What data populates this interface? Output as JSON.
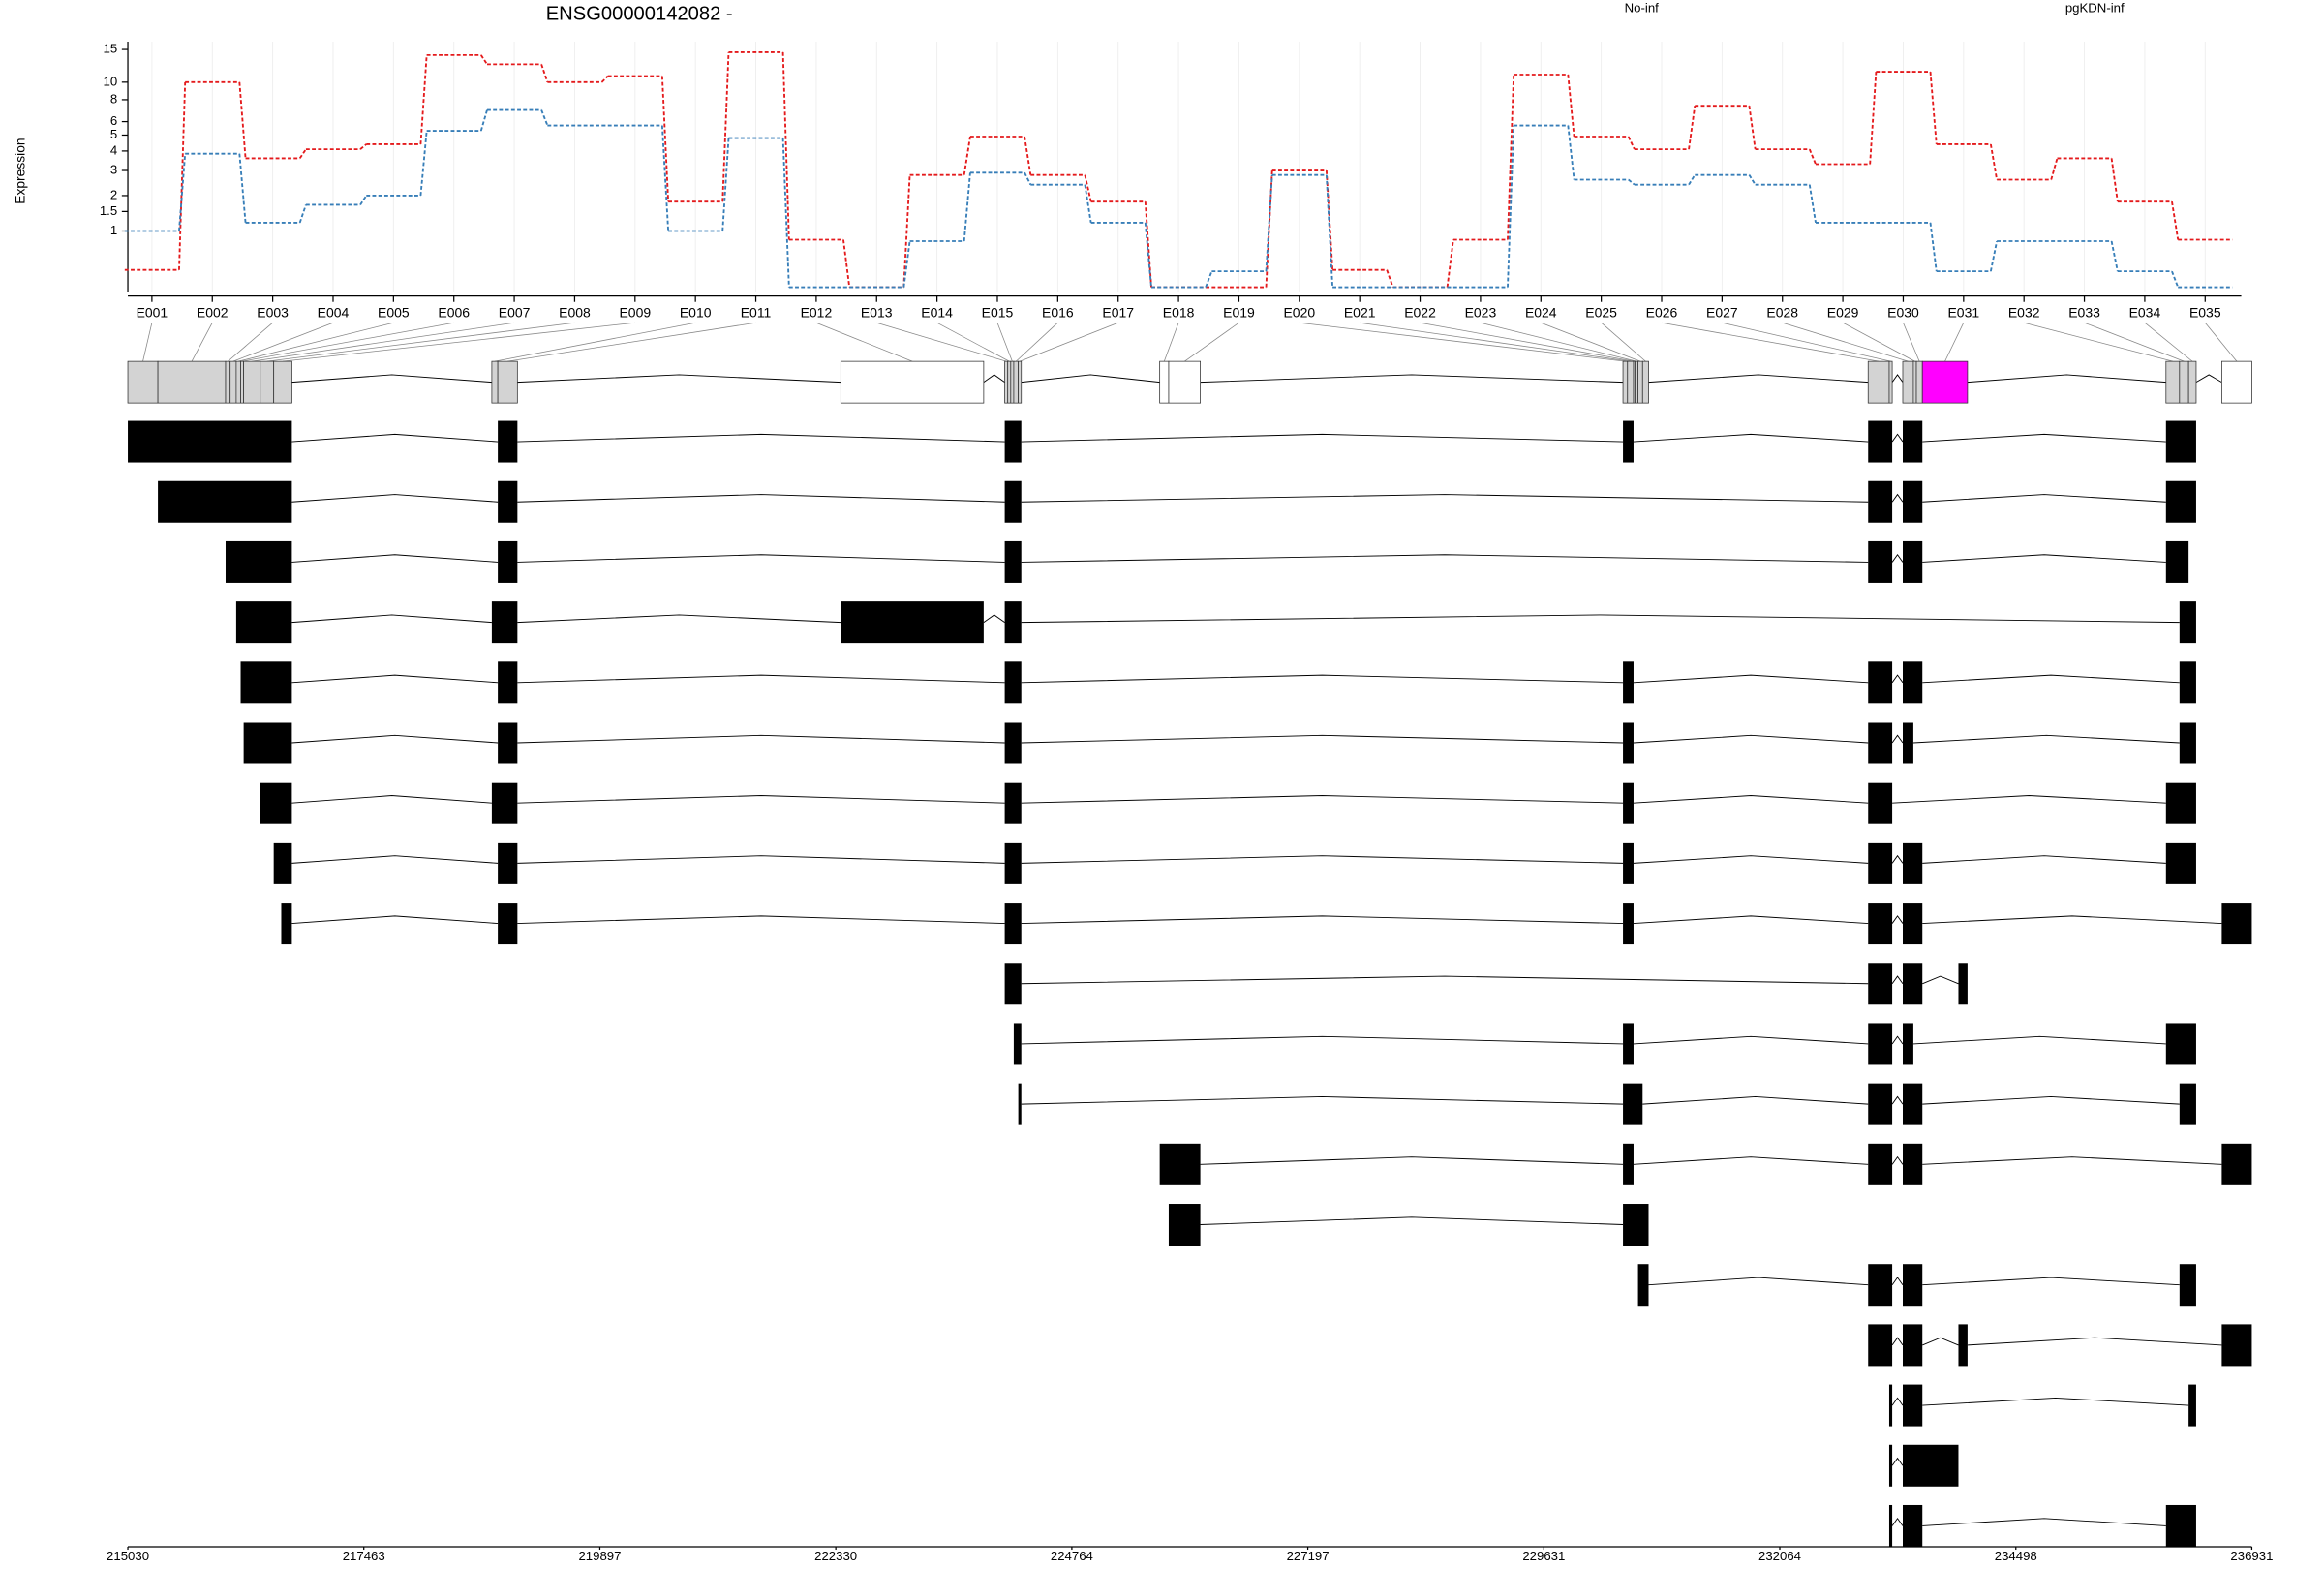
{
  "chart_data": [
    {
      "type": "line",
      "title": "ENSG00000142082 -",
      "y_label": "Expression",
      "categories": [
        "E001",
        "E002",
        "E003",
        "E004",
        "E005",
        "E006",
        "E007",
        "E008",
        "E009",
        "E010",
        "E011",
        "E012",
        "E013",
        "E014",
        "E015",
        "E016",
        "E017",
        "E018",
        "E019",
        "E020",
        "E021",
        "E022",
        "E023",
        "E024",
        "E025",
        "E026",
        "E027",
        "E028",
        "E029",
        "E030",
        "E031",
        "E032",
        "E033",
        "E034",
        "E035"
      ],
      "series": [
        {
          "name": "No-inf",
          "color": "#e41a1c",
          "values": [
            0.28,
            10,
            3.6,
            4.1,
            4.4,
            14,
            12.5,
            10,
            10.8,
            1.8,
            14.5,
            0.81,
            0.05,
            2.8,
            4.9,
            2.8,
            1.8,
            0.05,
            0.05,
            3,
            0.28,
            0.05,
            0.81,
            11,
            4.9,
            4.1,
            7.4,
            4.1,
            3.3,
            11.4,
            4.4,
            2.6,
            3.6,
            1.8,
            0.81
          ]
        },
        {
          "name": "pgKDN-inf",
          "color": "#377eb8",
          "values": [
            1,
            3.85,
            1.2,
            1.7,
            2,
            5.3,
            7,
            5.7,
            5.7,
            1,
            4.8,
            0.05,
            0.05,
            0.78,
            2.9,
            2.4,
            1.2,
            0.05,
            0.26,
            2.8,
            0.05,
            0.05,
            0.05,
            5.7,
            2.6,
            2.4,
            2.8,
            2.4,
            1.2,
            1.2,
            0.26,
            0.78,
            0.78,
            0.26,
            0.05
          ]
        }
      ],
      "ylim": [
        0,
        16.5
      ],
      "yticks": [
        1,
        1.5,
        2,
        3,
        4,
        5,
        6,
        8,
        10,
        15
      ],
      "ylog": true,
      "grid": true,
      "legend": "top"
    },
    {
      "type": "gene_model",
      "xlim": [
        215030,
        236931
      ],
      "xticks": [
        215030,
        217463,
        219897,
        222330,
        224764,
        227197,
        229631,
        232064,
        234498,
        236931
      ],
      "exon_parts": [
        [
          215030,
          215340
        ],
        [
          215340,
          216038
        ],
        [
          216038,
          216085
        ],
        [
          216085,
          216147
        ],
        [
          216147,
          216193
        ],
        [
          216193,
          216224
        ],
        [
          216224,
          216395
        ],
        [
          216395,
          216534
        ],
        [
          216534,
          216721
        ],
        [
          218783,
          218845
        ],
        [
          218845,
          219047
        ],
        [
          222382,
          223855
        ],
        [
          224072,
          224103
        ],
        [
          224103,
          224134
        ],
        [
          224134,
          224165
        ],
        [
          224165,
          224212
        ],
        [
          224212,
          224243
        ],
        [
          225670,
          225763
        ],
        [
          225763,
          226089
        ],
        [
          230447,
          230494
        ],
        [
          230494,
          230556
        ],
        [
          230556,
          230571
        ],
        [
          230571,
          230602
        ],
        [
          230602,
          230649
        ],
        [
          230649,
          230711
        ],
        [
          232975,
          233192
        ],
        [
          233192,
          233223
        ],
        [
          233332,
          233441
        ],
        [
          233441,
          233472
        ],
        [
          233472,
          233534
        ],
        [
          233534,
          234000
        ],
        [
          236046,
          236186
        ],
        [
          236186,
          236279
        ],
        [
          236279,
          236357
        ],
        [
          236621,
          236931
        ]
      ],
      "exon_colors": [
        "#d3d3d3",
        "#d3d3d3",
        "#d3d3d3",
        "#d3d3d3",
        "#d3d3d3",
        "#d3d3d3",
        "#d3d3d3",
        "#d3d3d3",
        "#d3d3d3",
        "#d3d3d3",
        "#d3d3d3",
        "#ffffff",
        "#d3d3d3",
        "#d3d3d3",
        "#d3d3d3",
        "#d3d3d3",
        "#d3d3d3",
        "#ffffff",
        "#ffffff",
        "#d3d3d3",
        "#d3d3d3",
        "#d3d3d3",
        "#d3d3d3",
        "#d3d3d3",
        "#d3d3d3",
        "#d3d3d3",
        "#d3d3d3",
        "#d3d3d3",
        "#d3d3d3",
        "#d3d3d3",
        "#ff00ff",
        "#d3d3d3",
        "#d3d3d3",
        "#d3d3d3",
        "#ffffff"
      ],
      "color": "#000000",
      "transcripts": [
        [
          [
            215030,
            216721
          ],
          [
            218845,
            219047
          ],
          [
            224072,
            224243
          ],
          [
            230447,
            230556
          ],
          [
            232975,
            233223
          ],
          [
            233332,
            233534
          ],
          [
            236046,
            236357
          ]
        ],
        [
          [
            215340,
            216721
          ],
          [
            218845,
            219047
          ],
          [
            224072,
            224243
          ],
          [
            232975,
            233223
          ],
          [
            233332,
            233534
          ],
          [
            236046,
            236357
          ]
        ],
        [
          [
            216038,
            216721
          ],
          [
            218845,
            219047
          ],
          [
            224072,
            224243
          ],
          [
            232975,
            233223
          ],
          [
            233332,
            233534
          ],
          [
            236046,
            236279
          ]
        ],
        [
          [
            216147,
            216721
          ],
          [
            218783,
            219047
          ],
          [
            222382,
            223855
          ],
          [
            224072,
            224243
          ],
          [
            236186,
            236357
          ]
        ],
        [
          [
            216193,
            216721
          ],
          [
            218845,
            219047
          ],
          [
            224072,
            224243
          ],
          [
            230447,
            230556
          ],
          [
            232975,
            233223
          ],
          [
            233332,
            233534
          ],
          [
            236186,
            236357
          ]
        ],
        [
          [
            216224,
            216721
          ],
          [
            218845,
            219047
          ],
          [
            224072,
            224243
          ],
          [
            230447,
            230556
          ],
          [
            232975,
            233223
          ],
          [
            233332,
            233441
          ],
          [
            236186,
            236357
          ]
        ],
        [
          [
            216395,
            216721
          ],
          [
            218783,
            219047
          ],
          [
            224072,
            224243
          ],
          [
            230447,
            230556
          ],
          [
            232975,
            233223
          ],
          [
            236046,
            236357
          ]
        ],
        [
          [
            216534,
            216721
          ],
          [
            218845,
            219047
          ],
          [
            224072,
            224243
          ],
          [
            230447,
            230556
          ],
          [
            232975,
            233223
          ],
          [
            233332,
            233534
          ],
          [
            236046,
            236357
          ]
        ],
        [
          [
            216612,
            216721
          ],
          [
            218845,
            219047
          ],
          [
            224072,
            224243
          ],
          [
            230447,
            230556
          ],
          [
            232975,
            233223
          ],
          [
            233332,
            233534
          ],
          [
            236621,
            236931
          ]
        ],
        [
          [
            224072,
            224243
          ],
          [
            232975,
            233223
          ],
          [
            233332,
            233534
          ],
          [
            233906,
            234000
          ]
        ],
        [
          [
            224165,
            224243
          ],
          [
            230447,
            230556
          ],
          [
            232975,
            233223
          ],
          [
            233332,
            233441
          ],
          [
            236046,
            236357
          ]
        ],
        [
          [
            224212,
            224243
          ],
          [
            230447,
            230649
          ],
          [
            232975,
            233223
          ],
          [
            233332,
            233534
          ],
          [
            236186,
            236357
          ]
        ],
        [
          [
            225670,
            226089
          ],
          [
            230447,
            230556
          ],
          [
            232975,
            233223
          ],
          [
            233332,
            233534
          ],
          [
            236621,
            236931
          ]
        ],
        [
          [
            225763,
            226089
          ],
          [
            230447,
            230711
          ]
        ],
        [
          [
            230602,
            230711
          ],
          [
            232975,
            233223
          ],
          [
            233332,
            233534
          ],
          [
            236186,
            236357
          ]
        ],
        [
          [
            232975,
            233223
          ],
          [
            233332,
            233534
          ],
          [
            233906,
            234000
          ],
          [
            236621,
            236931
          ]
        ],
        [
          [
            233192,
            233223
          ],
          [
            233332,
            233534
          ],
          [
            236279,
            236357
          ]
        ],
        [
          [
            233192,
            233223
          ],
          [
            233332,
            233906
          ]
        ],
        [
          [
            233192,
            233223
          ],
          [
            233332,
            233534
          ],
          [
            236046,
            236357
          ]
        ]
      ]
    }
  ]
}
